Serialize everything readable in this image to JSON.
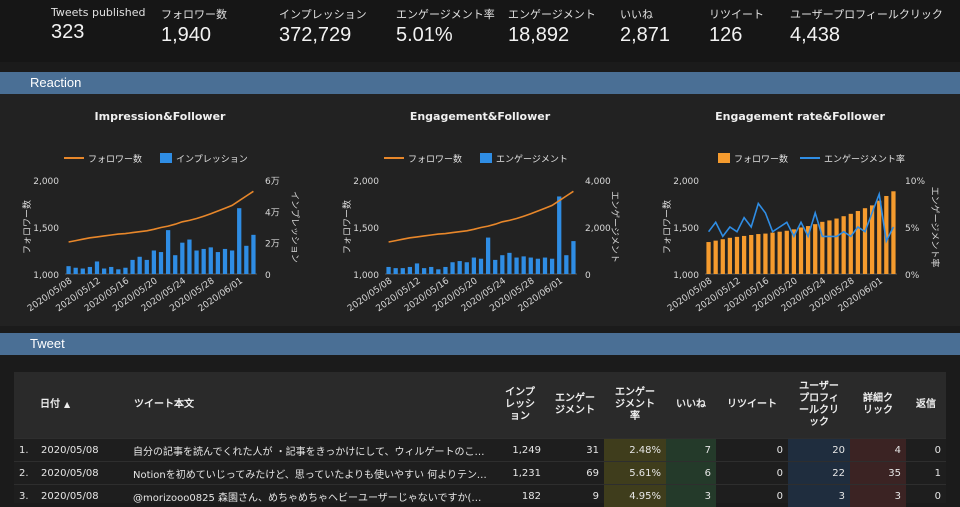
{
  "kpis": [
    {
      "label": "Tweets published",
      "value": "323"
    },
    {
      "label": "フォロワー数",
      "value": "1,940"
    },
    {
      "label": "インプレッション",
      "value": "372,729"
    },
    {
      "label": "エンゲージメント率",
      "value": "5.01%"
    },
    {
      "label": "エンゲージメント",
      "value": "18,892"
    },
    {
      "label": "いいね",
      "value": "2,871"
    },
    {
      "label": "リツイート",
      "value": "126"
    },
    {
      "label": "ユーザープロフィールクリック",
      "value": "4,438"
    }
  ],
  "sections": {
    "reaction": "Reaction",
    "tweet": "Tweet"
  },
  "colors": {
    "line": "#e8872a",
    "bar": "#2f8de4",
    "bar_orange": "#f59b2e",
    "rate_line": "#2f8de4",
    "section": "#4a6f95"
  },
  "chart_data": [
    {
      "type": "bar",
      "title": "Impression&Follower",
      "legend": [
        "フォロワー数",
        "インプレッション"
      ],
      "ylabel_left": "フォロワー数",
      "ylabel_right": "インプレッション",
      "left_ticks": [
        "2,000",
        "1,500",
        "1,000"
      ],
      "right_ticks": [
        "6万",
        "4万",
        "2万",
        "0"
      ],
      "x_ticks": [
        "2020/05/08",
        "2020/05/12",
        "2020/05/16",
        "2020/05/20",
        "2020/05/24",
        "2020/05/28",
        "2020/06/01"
      ],
      "ylim_left": [
        1000,
        2000
      ],
      "ylim_right": [
        0,
        60000
      ],
      "x": [
        "05/08",
        "05/09",
        "05/10",
        "05/11",
        "05/12",
        "05/13",
        "05/14",
        "05/15",
        "05/16",
        "05/17",
        "05/18",
        "05/19",
        "05/20",
        "05/21",
        "05/22",
        "05/23",
        "05/24",
        "05/25",
        "05/26",
        "05/27",
        "05/28",
        "05/29",
        "05/30",
        "05/31",
        "06/01",
        "06/02",
        "06/03"
      ],
      "followers": [
        1340,
        1355,
        1370,
        1385,
        1395,
        1405,
        1415,
        1425,
        1430,
        1440,
        1450,
        1460,
        1475,
        1495,
        1510,
        1530,
        1555,
        1570,
        1590,
        1615,
        1640,
        1670,
        1700,
        1730,
        1780,
        1830,
        1880
      ],
      "values": [
        5000,
        4000,
        3500,
        4500,
        8000,
        3500,
        4500,
        3000,
        4000,
        9000,
        11000,
        9000,
        15000,
        14000,
        28000,
        12000,
        20000,
        22000,
        15000,
        16000,
        17000,
        14000,
        16000,
        15000,
        42000,
        18000,
        25000
      ]
    },
    {
      "type": "bar",
      "title": "Engagement&Follower",
      "legend": [
        "フォロワー数",
        "エンゲージメント"
      ],
      "ylabel_left": "フォロワー数",
      "ylabel_right": "エンゲージメント",
      "left_ticks": [
        "2,000",
        "1,500",
        "1,000"
      ],
      "right_ticks": [
        "4,000",
        "2,000",
        "0"
      ],
      "x_ticks": [
        "2020/05/08",
        "2020/05/12",
        "2020/05/16",
        "2020/05/20",
        "2020/05/24",
        "2020/05/28",
        "2020/06/01"
      ],
      "ylim_left": [
        1000,
        2000
      ],
      "ylim_right": [
        0,
        4000
      ],
      "x": [
        "05/08",
        "05/09",
        "05/10",
        "05/11",
        "05/12",
        "05/13",
        "05/14",
        "05/15",
        "05/16",
        "05/17",
        "05/18",
        "05/19",
        "05/20",
        "05/21",
        "05/22",
        "05/23",
        "05/24",
        "05/25",
        "05/26",
        "05/27",
        "05/28",
        "05/29",
        "05/30",
        "05/31",
        "06/01",
        "06/02",
        "06/03"
      ],
      "followers": [
        1340,
        1355,
        1370,
        1385,
        1395,
        1405,
        1415,
        1425,
        1430,
        1440,
        1450,
        1460,
        1475,
        1495,
        1510,
        1530,
        1555,
        1570,
        1590,
        1615,
        1640,
        1670,
        1700,
        1730,
        1780,
        1830,
        1880
      ],
      "values": [
        300,
        250,
        250,
        300,
        450,
        250,
        300,
        200,
        300,
        500,
        550,
        500,
        700,
        650,
        1550,
        600,
        800,
        900,
        700,
        750,
        700,
        650,
        700,
        650,
        3300,
        800,
        1400
      ]
    },
    {
      "type": "bar",
      "title": "Engagement rate&Follower",
      "legend": [
        "フォロワー数",
        "エンゲージメント率"
      ],
      "ylabel_left": "フォロワー数",
      "ylabel_right": "エンゲージメント率",
      "left_ticks": [
        "2,000",
        "1,500",
        "1,000"
      ],
      "right_ticks": [
        "10%",
        "5%",
        "0%"
      ],
      "x_ticks": [
        "2020/05/08",
        "2020/05/12",
        "2020/05/16",
        "2020/05/20",
        "2020/05/24",
        "2020/05/28",
        "2020/06/01"
      ],
      "ylim_left": [
        1000,
        2000
      ],
      "ylim_right": [
        0,
        10
      ],
      "x": [
        "05/08",
        "05/09",
        "05/10",
        "05/11",
        "05/12",
        "05/13",
        "05/14",
        "05/15",
        "05/16",
        "05/17",
        "05/18",
        "05/19",
        "05/20",
        "05/21",
        "05/22",
        "05/23",
        "05/24",
        "05/25",
        "05/26",
        "05/27",
        "05/28",
        "05/29",
        "05/30",
        "05/31",
        "06/01",
        "06/02",
        "06/03"
      ],
      "followers": [
        1340,
        1355,
        1370,
        1385,
        1395,
        1405,
        1415,
        1425,
        1430,
        1440,
        1450,
        1460,
        1475,
        1495,
        1510,
        1530,
        1555,
        1570,
        1590,
        1615,
        1640,
        1670,
        1700,
        1730,
        1780,
        1830,
        1880
      ],
      "rate": [
        4.5,
        5.5,
        4.0,
        5.0,
        4.5,
        6.0,
        5.0,
        7.5,
        6.5,
        4.5,
        5.0,
        5.5,
        4.0,
        5.5,
        4.0,
        6.5,
        4.0,
        4.0,
        4.0,
        4.5,
        4.0,
        5.0,
        4.5,
        6.5,
        8.5,
        3.5,
        5.0
      ]
    }
  ],
  "table": {
    "headers": [
      "",
      "日付",
      "ツイート本文",
      "インプレッション",
      "エンゲージメント",
      "エンゲージメント率",
      "いいね",
      "リツイート",
      "ユーザープロフィールクリック",
      "詳細クリック",
      "返信"
    ],
    "rows": [
      [
        "1.",
        "2020/05/08",
        "自分の記事を読んでくれた人が ・記事をきっかけにして、ウィルゲートのことを…",
        "1,249",
        "31",
        "2.48%",
        "7",
        "0",
        "20",
        "4",
        "0"
      ],
      [
        "2.",
        "2020/05/08",
        "Notionを初めていじってみたけど、思っていたよりも使いやすい 何よりテンプレ…",
        "1,231",
        "69",
        "5.61%",
        "6",
        "0",
        "22",
        "35",
        "1"
      ],
      [
        "3.",
        "2020/05/08",
        "@morizooo0825 森園さん、めちゃめちゃヘビーユーザーじゃないですか(笑) そう…",
        "182",
        "9",
        "4.95%",
        "3",
        "0",
        "3",
        "3",
        "0"
      ]
    ]
  }
}
